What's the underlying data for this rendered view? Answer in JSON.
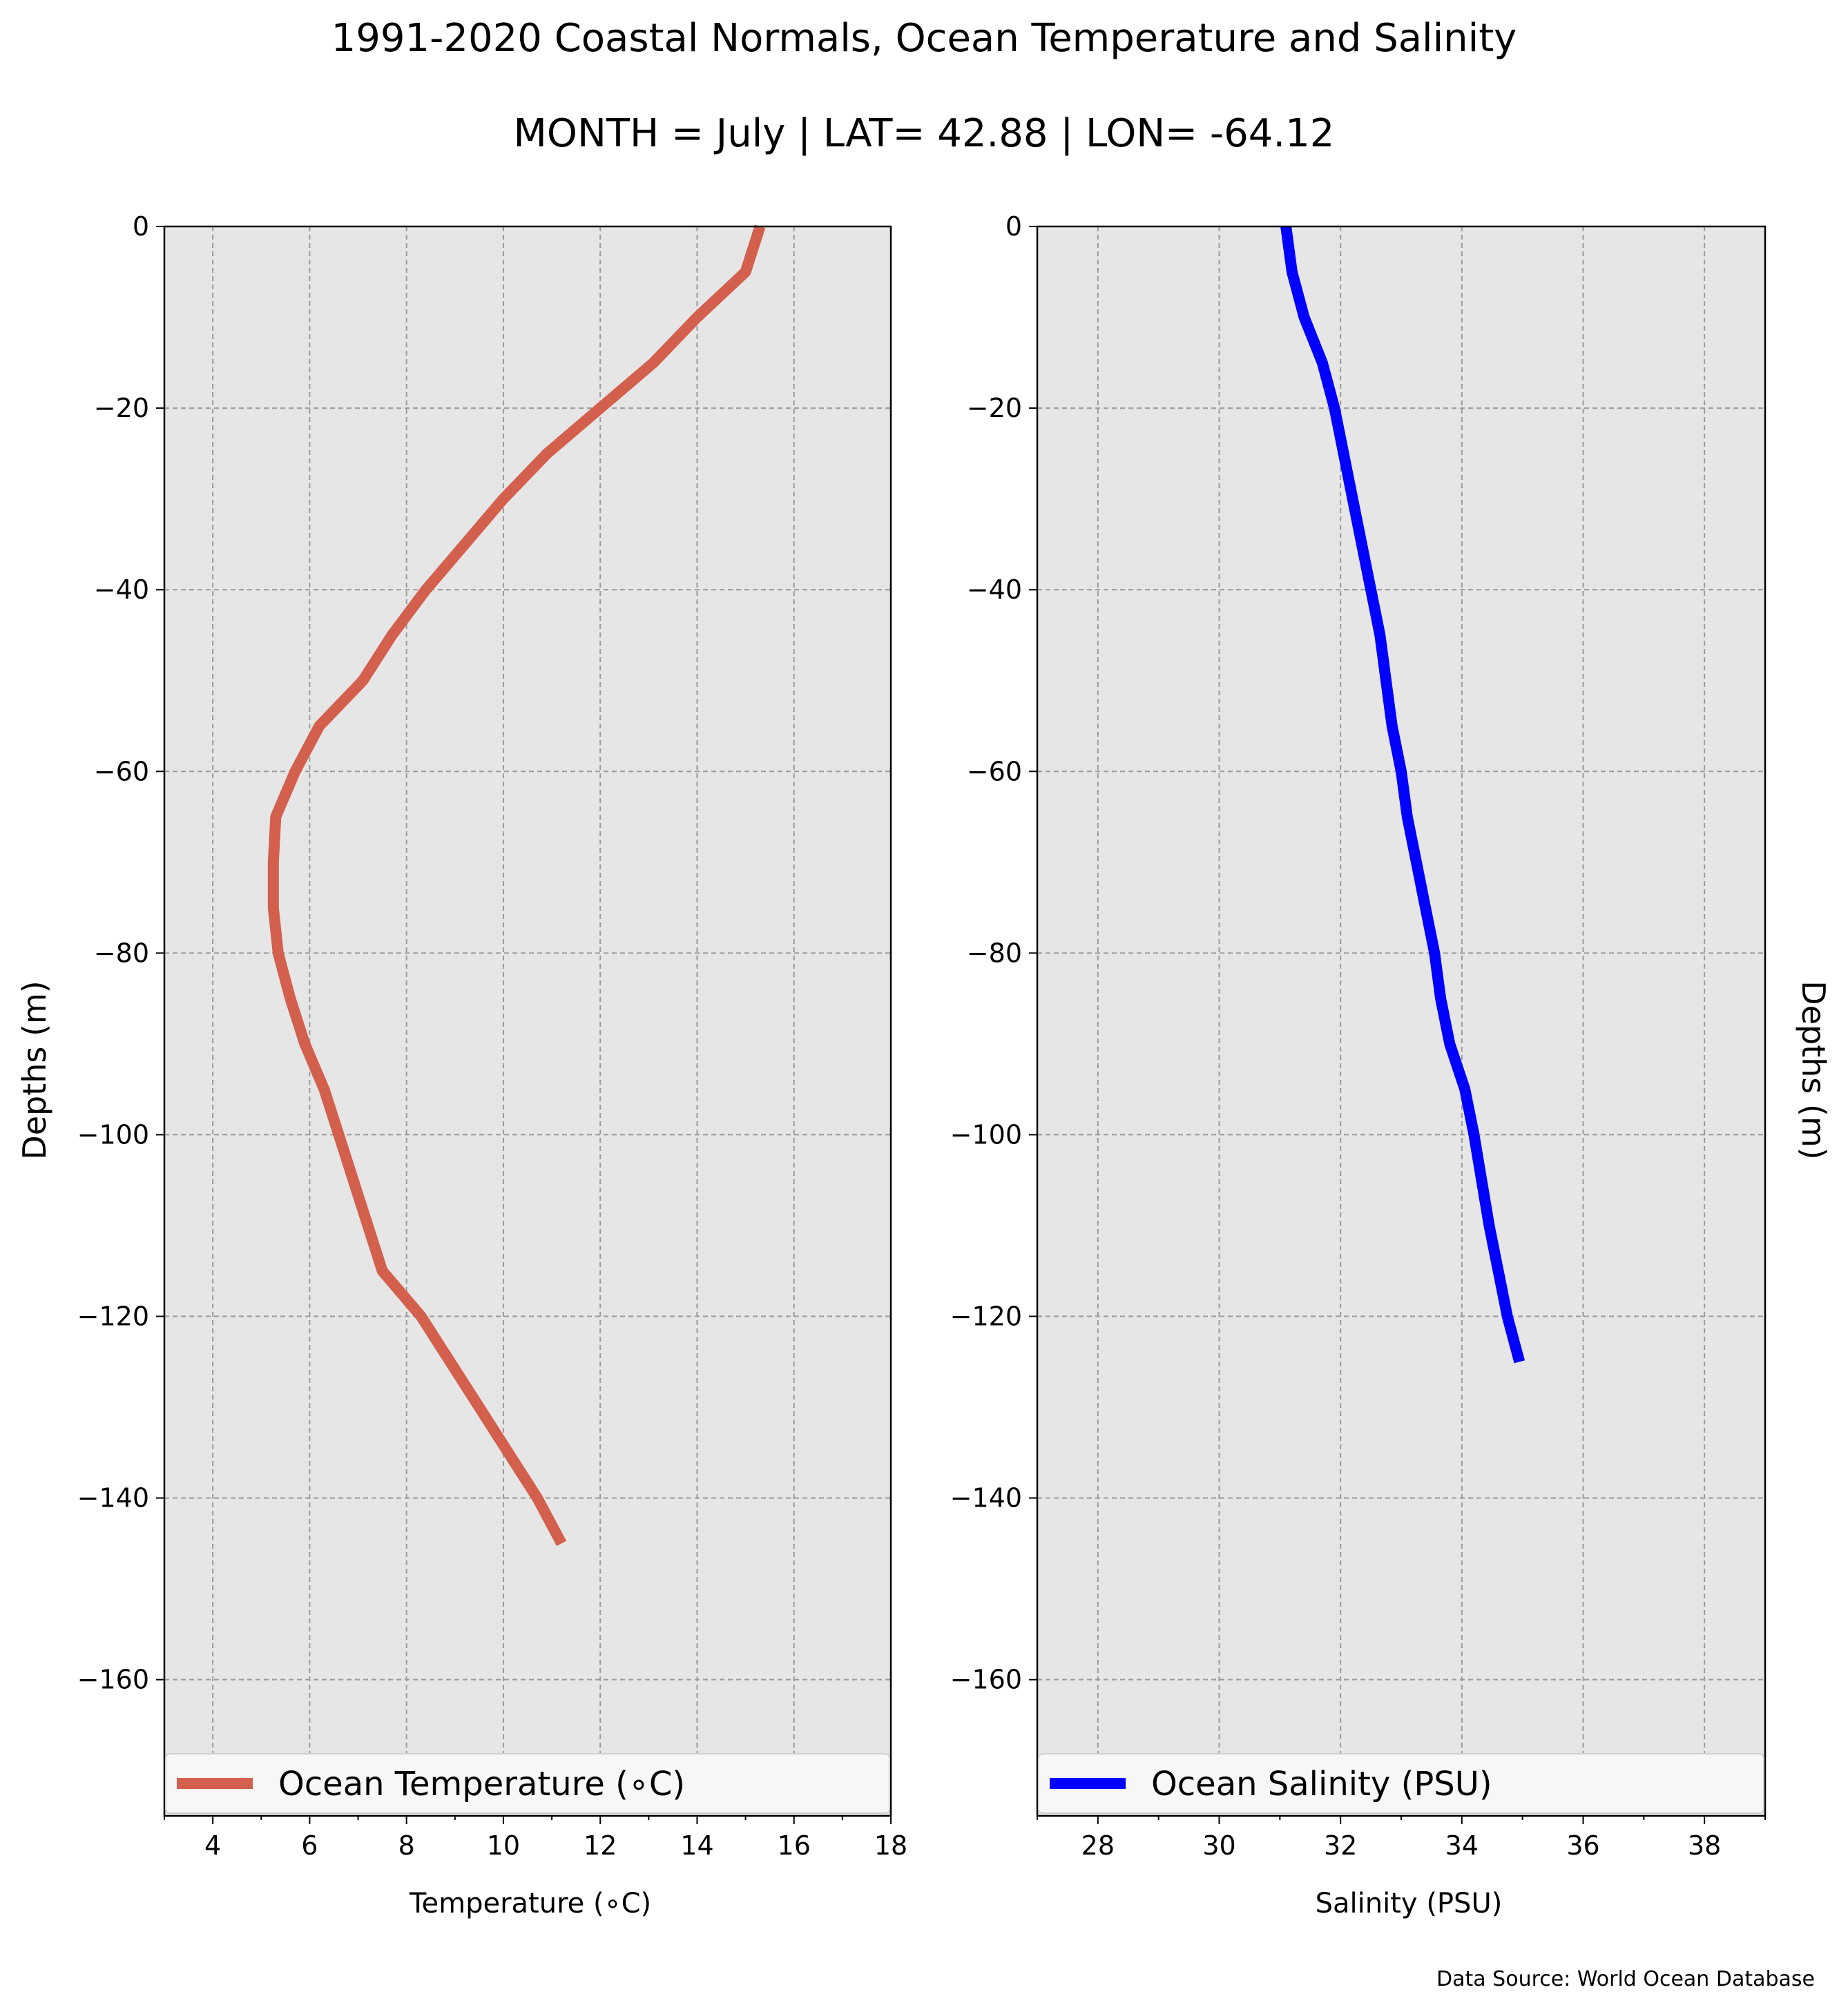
{
  "title": "1991-2020 Coastal Normals, Ocean Temperature and Salinity",
  "subtitle": "MONTH = July | LAT= 42.88 | LON= -64.12",
  "source_note": "Data Source: World Ocean Database",
  "colors": {
    "plot_background": "#e6e6e6",
    "grid": "#9a9a9a",
    "temperature_line": "#d35f4d",
    "salinity_line": "#0000ff"
  },
  "chart_data": [
    {
      "type": "line",
      "xlabel": "Temperature ($^\\circ$C)",
      "xlabel_display": "Temperature (∘C)",
      "ylabel": "Depths (m)",
      "xlim": [
        3,
        18
      ],
      "ylim": [
        -175,
        0
      ],
      "xticks": [
        "4",
        "6",
        "8",
        "10",
        "12",
        "14",
        "16",
        "18"
      ],
      "yticks": [
        "0",
        "−20",
        "−40",
        "−60",
        "−80",
        "−100",
        "−120",
        "−140",
        "−160"
      ],
      "grid": true,
      "legend": "bottom",
      "series": [
        {
          "name": "Ocean Temperature (∘C)",
          "x": [
            15.3,
            15.0,
            14.0,
            13.1,
            12.0,
            10.9,
            10.0,
            9.2,
            8.4,
            7.7,
            7.1,
            6.2,
            5.7,
            5.3,
            5.25,
            5.25,
            5.35,
            5.6,
            5.9,
            6.3,
            6.6,
            6.9,
            7.2,
            7.5,
            8.3,
            8.9,
            9.5,
            10.1,
            10.7,
            11.2
          ],
          "y": [
            0,
            -5,
            -10,
            -15,
            -20,
            -25,
            -30,
            -35,
            -40,
            -45,
            -50,
            -55,
            -60,
            -65,
            -70,
            -75,
            -80,
            -85,
            -90,
            -95,
            -100,
            -105,
            -110,
            -115,
            -120,
            -125,
            -130,
            -135,
            -140,
            -145
          ]
        }
      ]
    },
    {
      "type": "line",
      "xlabel": "Salinity (PSU)",
      "ylabel": "Depths (m)",
      "xlim": [
        27,
        39
      ],
      "ylim": [
        -175,
        0
      ],
      "xticks": [
        "28",
        "30",
        "32",
        "34",
        "36",
        "38"
      ],
      "yticks": [
        "0",
        "−20",
        "−40",
        "−60",
        "−80",
        "−100",
        "−120",
        "−140",
        "−160"
      ],
      "grid": true,
      "legend": "bottom",
      "series": [
        {
          "name": "Ocean Salinity (PSU)",
          "x": [
            31.1,
            31.2,
            31.4,
            31.7,
            31.9,
            32.05,
            32.2,
            32.35,
            32.5,
            32.65,
            32.75,
            32.85,
            33.0,
            33.1,
            33.25,
            33.4,
            33.55,
            33.65,
            33.8,
            34.05,
            34.2,
            34.45,
            34.75,
            34.95
          ],
          "y": [
            0,
            -5,
            -10,
            -15,
            -20,
            -25,
            -30,
            -35,
            -40,
            -45,
            -50,
            -55,
            -60,
            -65,
            -70,
            -75,
            -80,
            -85,
            -90,
            -95,
            -100,
            -110,
            -120,
            -125
          ]
        }
      ]
    }
  ]
}
